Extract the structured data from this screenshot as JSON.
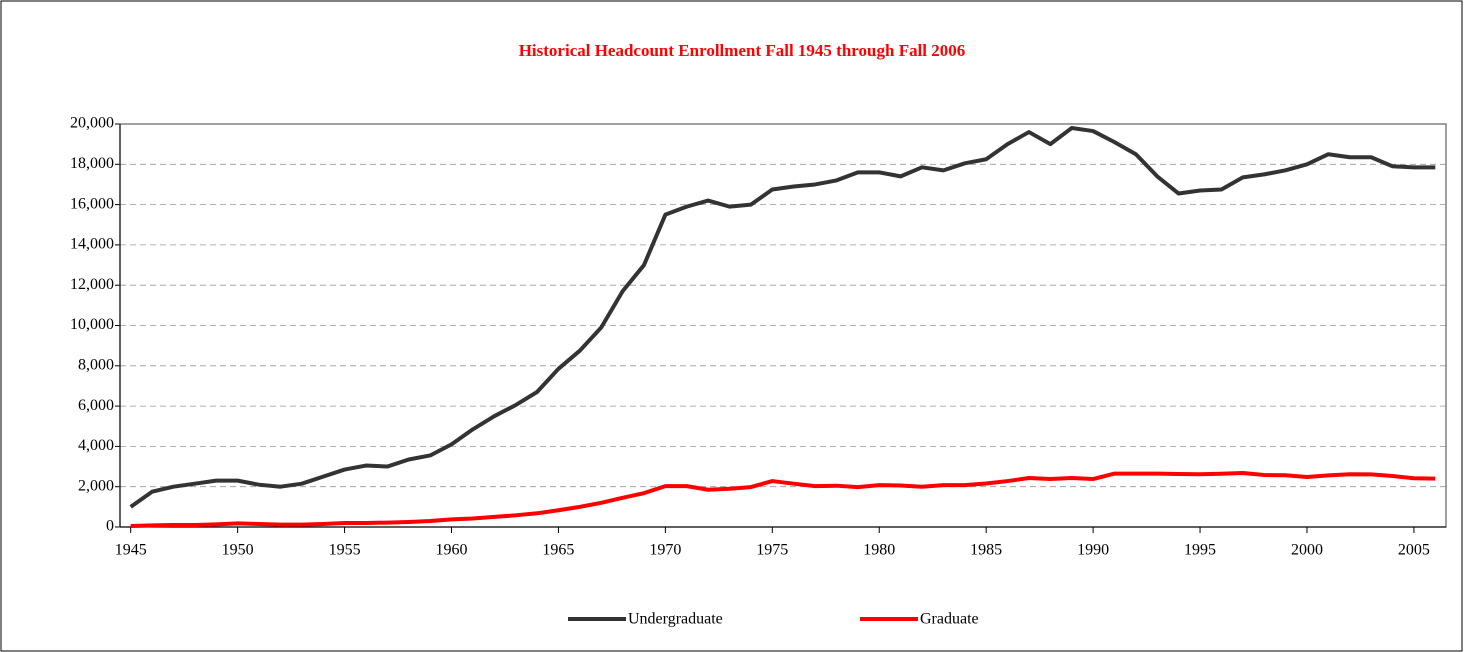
{
  "chart_data": {
    "type": "line",
    "title": "Historical Headcount Enrollment Fall 1945 through Fall 2006",
    "x": [
      1945,
      1946,
      1947,
      1948,
      1949,
      1950,
      1951,
      1952,
      1953,
      1954,
      1955,
      1956,
      1957,
      1958,
      1959,
      1960,
      1961,
      1962,
      1963,
      1964,
      1965,
      1966,
      1967,
      1968,
      1969,
      1970,
      1971,
      1972,
      1973,
      1974,
      1975,
      1976,
      1977,
      1978,
      1979,
      1980,
      1981,
      1982,
      1983,
      1984,
      1985,
      1986,
      1987,
      1988,
      1989,
      1990,
      1991,
      1992,
      1993,
      1994,
      1995,
      1996,
      1997,
      1998,
      1999,
      2000,
      2001,
      2002,
      2003,
      2004,
      2005,
      2006
    ],
    "series": [
      {
        "name": "Undergraduate",
        "color": "#333333",
        "values": [
          1000,
          1750,
          2000,
          2150,
          2300,
          2300,
          2100,
          2000,
          2150,
          2500,
          2850,
          3050,
          3000,
          3350,
          3550,
          4100,
          4850,
          5500,
          6050,
          6700,
          7850,
          8750,
          9900,
          11700,
          13000,
          15500,
          15900,
          16200,
          15900,
          16000,
          16750,
          16900,
          17000,
          17200,
          17600,
          17600,
          17400,
          17850,
          17700,
          18050,
          18250,
          19000,
          19600,
          19000,
          19800,
          19650,
          19100,
          18500,
          17400,
          16550,
          16700,
          16750,
          17350,
          17500,
          17700,
          18000,
          18500,
          18350,
          18350,
          17900,
          17850,
          17850
        ]
      },
      {
        "name": "Graduate",
        "color": "#ff0000",
        "values": [
          50,
          80,
          100,
          100,
          130,
          180,
          150,
          120,
          120,
          150,
          200,
          200,
          220,
          250,
          300,
          380,
          420,
          500,
          580,
          680,
          830,
          1000,
          1200,
          1450,
          1680,
          2030,
          2030,
          1850,
          1900,
          1980,
          2280,
          2150,
          2030,
          2050,
          1980,
          2080,
          2060,
          2000,
          2080,
          2080,
          2160,
          2280,
          2430,
          2380,
          2430,
          2380,
          2650,
          2650,
          2650,
          2630,
          2620,
          2640,
          2680,
          2580,
          2570,
          2480,
          2560,
          2620,
          2610,
          2530,
          2420,
          2400
        ]
      }
    ],
    "xlim": [
      1944.5,
      2006.5
    ],
    "xticks": [
      1945,
      1950,
      1955,
      1960,
      1965,
      1970,
      1975,
      1980,
      1985,
      1990,
      1995,
      2000,
      2005
    ],
    "ylim": [
      0,
      20000
    ],
    "yticks": [
      0,
      {
        "value": 2000,
        "label": "2,000"
      },
      {
        "value": 4000,
        "label": "4,000"
      },
      {
        "value": 6000,
        "label": "6,000"
      },
      {
        "value": 8000,
        "label": "8,000"
      },
      {
        "value": 10000,
        "label": "10,000"
      },
      {
        "value": 12000,
        "label": "12,000"
      },
      {
        "value": 14000,
        "label": "14,000"
      },
      {
        "value": 16000,
        "label": "16,000"
      },
      {
        "value": 18000,
        "label": "18,000"
      },
      {
        "value": 20000,
        "label": "20,000"
      }
    ],
    "grid": true,
    "legend": "bottom"
  }
}
